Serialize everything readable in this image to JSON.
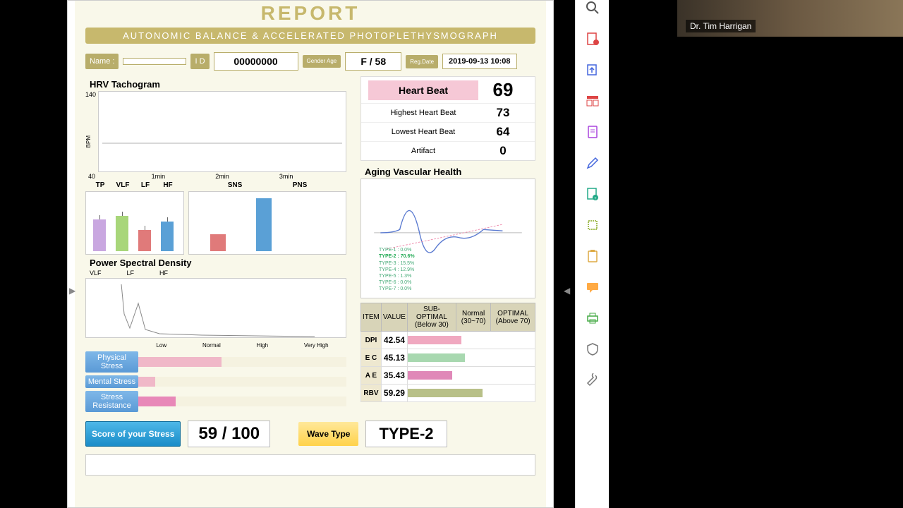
{
  "header": {
    "title": "REPORT",
    "subtitle": "AUTONOMIC BALANCE & ACCELERATED PHOTOPLETHYSMOGRAPH"
  },
  "patient": {
    "name_label": "Name :",
    "name": "",
    "id_label": "I D",
    "id": "00000000",
    "gender_label": "Gender Age",
    "gender_age": "F   /  58",
    "regdate_label": "Reg.Date",
    "regdate": "2019-09-13 10:08"
  },
  "tachogram": {
    "title": "HRV Tachogram",
    "y_max": "140",
    "y_min": "40",
    "y_unit": "BPM",
    "x_ticks": [
      "1min",
      "2min",
      "3min"
    ]
  },
  "heartbeat": {
    "rows": [
      {
        "label": "Heart Beat",
        "value": "69",
        "main": true
      },
      {
        "label": "Highest Heart Beat",
        "value": "73"
      },
      {
        "label": "Lowest Heart Beat",
        "value": "64"
      },
      {
        "label": "Artifact",
        "value": "0"
      }
    ]
  },
  "freq_bars": {
    "labels": [
      "TP",
      "VLF",
      "LF",
      "HF"
    ],
    "heights": [
      45,
      50,
      30,
      42
    ],
    "colors": [
      "#c9a7e0",
      "#a8d67a",
      "#e07a7a",
      "#5aa0d6"
    ]
  },
  "sns_pns": {
    "labels": [
      "SNS",
      "PNS"
    ],
    "heights": [
      24,
      75
    ],
    "colors": [
      "#e07a7a",
      "#5aa0d6"
    ]
  },
  "psd": {
    "title": "Power Spectral Density",
    "labels": [
      "VLF",
      "LF",
      "HF"
    ]
  },
  "aging": {
    "title": "Aging Vascular Health",
    "types": [
      "TYPE-1 : 0.0%",
      "TYPE-2 : 70.6%",
      "TYPE-3 : 15.5%",
      "TYPE-4 : 12.9%",
      "TYPE-5 : 1.3%",
      "TYPE-6 : 0.0%",
      "TYPE-7 : 0.0%"
    ],
    "highlight_index": 1
  },
  "vascular_table": {
    "headers": [
      "ITEM",
      "VALUE",
      "SUB-OPTIMAL (Below 30)",
      "Normal (30~70)",
      "OPTIMAL (Above 70)"
    ],
    "rows": [
      {
        "item": "DPI",
        "value": "42.54",
        "bar_pct": 42,
        "color": "#f0a8c0"
      },
      {
        "item": "E C",
        "value": "45.13",
        "bar_pct": 45,
        "color": "#a8d8b0"
      },
      {
        "item": "A E",
        "value": "35.43",
        "bar_pct": 35,
        "color": "#e088b8"
      },
      {
        "item": "RBV",
        "value": "59.29",
        "bar_pct": 59,
        "color": "#b8c088"
      }
    ]
  },
  "stress": {
    "scale": [
      "Low",
      "Normal",
      "High",
      "Very High"
    ],
    "rows": [
      {
        "label": "Physical Stress",
        "pct": 40,
        "color": "#f0b8c8"
      },
      {
        "label": "Mental Stress",
        "pct": 8,
        "color": "#f0b8c8"
      },
      {
        "label": "Stress Resistance",
        "pct": 18,
        "color": "#e888b8"
      }
    ]
  },
  "score": {
    "label": "Score of your Stress",
    "value": "59 / 100"
  },
  "wave": {
    "label": "Wave Type",
    "value": "TYPE-2"
  },
  "presenter": {
    "name": "Dr. Tim Harrigan"
  },
  "toolbar": {
    "icons": [
      "search",
      "pdf",
      "export",
      "layout",
      "file",
      "edit",
      "add-page",
      "crop",
      "paste",
      "comment",
      "print",
      "shield",
      "tools"
    ]
  }
}
